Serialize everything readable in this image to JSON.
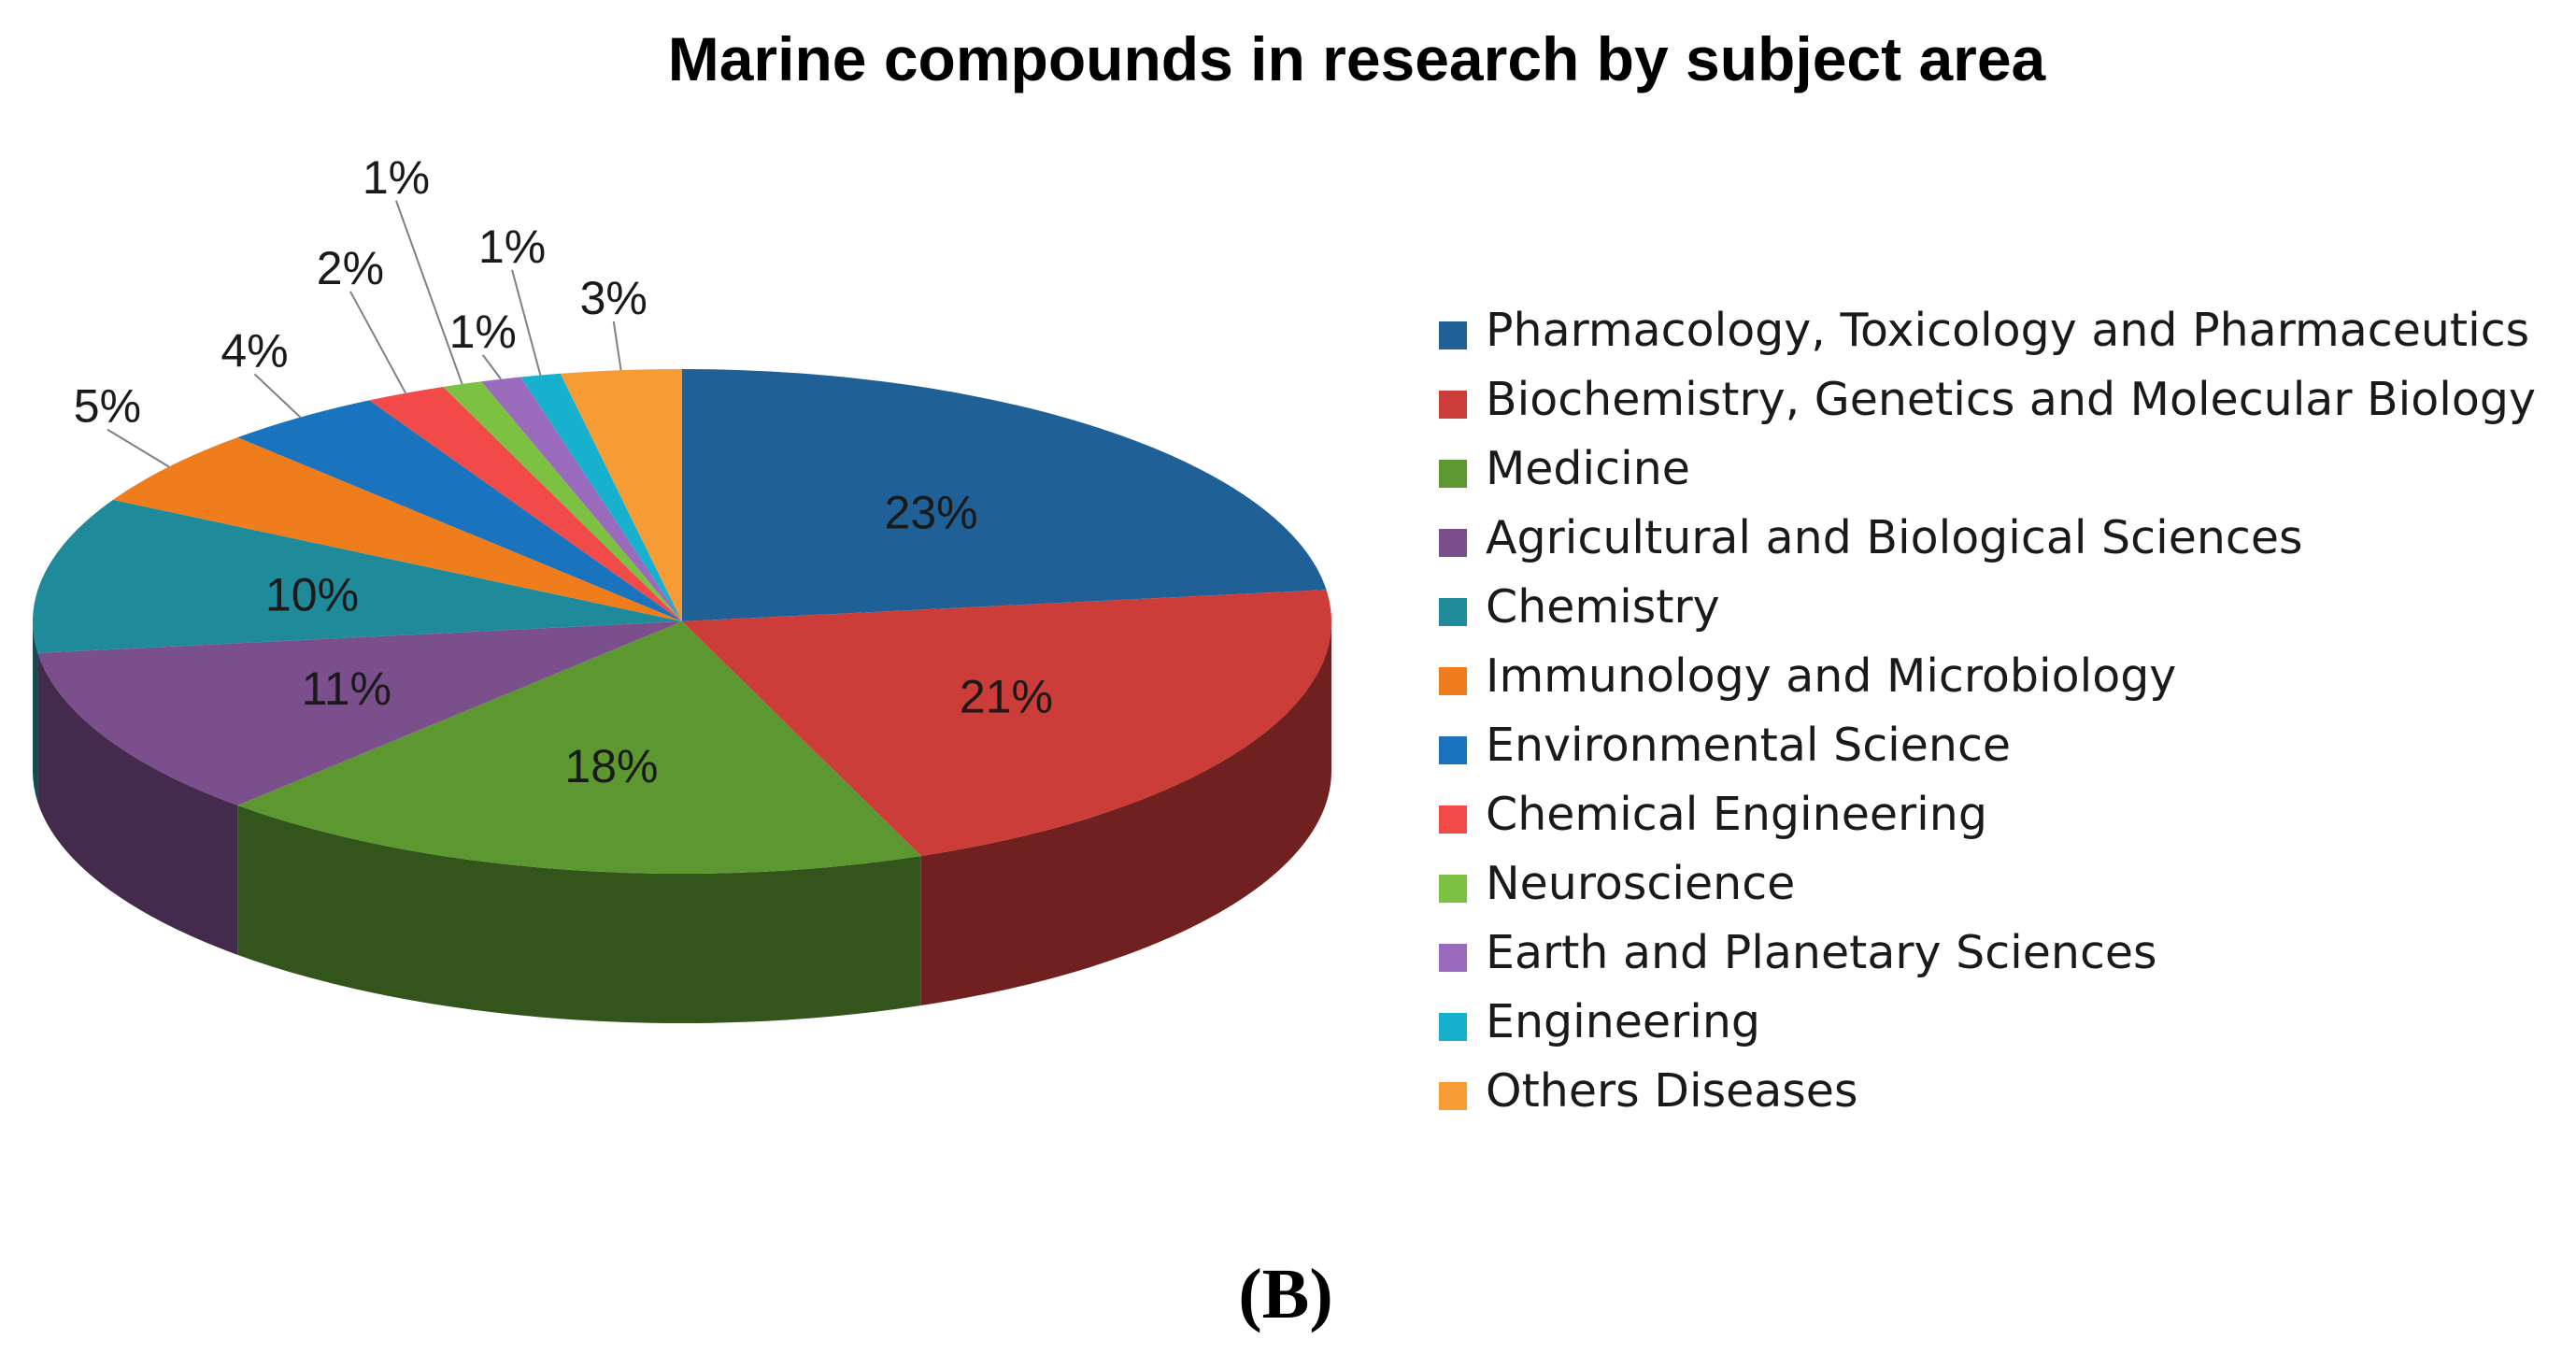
{
  "chart_data": {
    "type": "pie",
    "title": "Marine compounds in research by subject area",
    "panel_label": "(B)",
    "legend_position": "right",
    "slices": [
      {
        "label": "Pharmacology, Toxicology and Pharmaceutics",
        "value": 23,
        "text": "23%",
        "color": "#1f6196"
      },
      {
        "label": "Biochemistry, Genetics and Molecular Biology",
        "value": 21,
        "text": "21%",
        "color": "#cc3c38"
      },
      {
        "label": "Medicine",
        "value": 18,
        "text": "18%",
        "color": "#5c982f"
      },
      {
        "label": "Agricultural and Biological Sciences",
        "value": 11,
        "text": "11%",
        "color": "#7b4f8c"
      },
      {
        "label": "Chemistry",
        "value": 10,
        "text": "10%",
        "color": "#1f8a9a"
      },
      {
        "label": "Immunology and Microbiology",
        "value": 5,
        "text": "5%",
        "color": "#f07d1c"
      },
      {
        "label": "Environmental Science",
        "value": 4,
        "text": "4%",
        "color": "#1a74bd"
      },
      {
        "label": "Chemical Engineering",
        "value": 2,
        "text": "2%",
        "color": "#f24a48"
      },
      {
        "label": "Neuroscience",
        "value": 1,
        "text": "1%",
        "color": "#7cc142"
      },
      {
        "label": "Earth and Planetary Sciences",
        "value": 1,
        "text": "1%",
        "color": "#9a6bbd"
      },
      {
        "label": "Engineering",
        "value": 1,
        "text": "1%",
        "color": "#18b0cf"
      },
      {
        "label": "Others Diseases",
        "value": 3,
        "text": "3%",
        "color": "#f79c34"
      }
    ]
  }
}
